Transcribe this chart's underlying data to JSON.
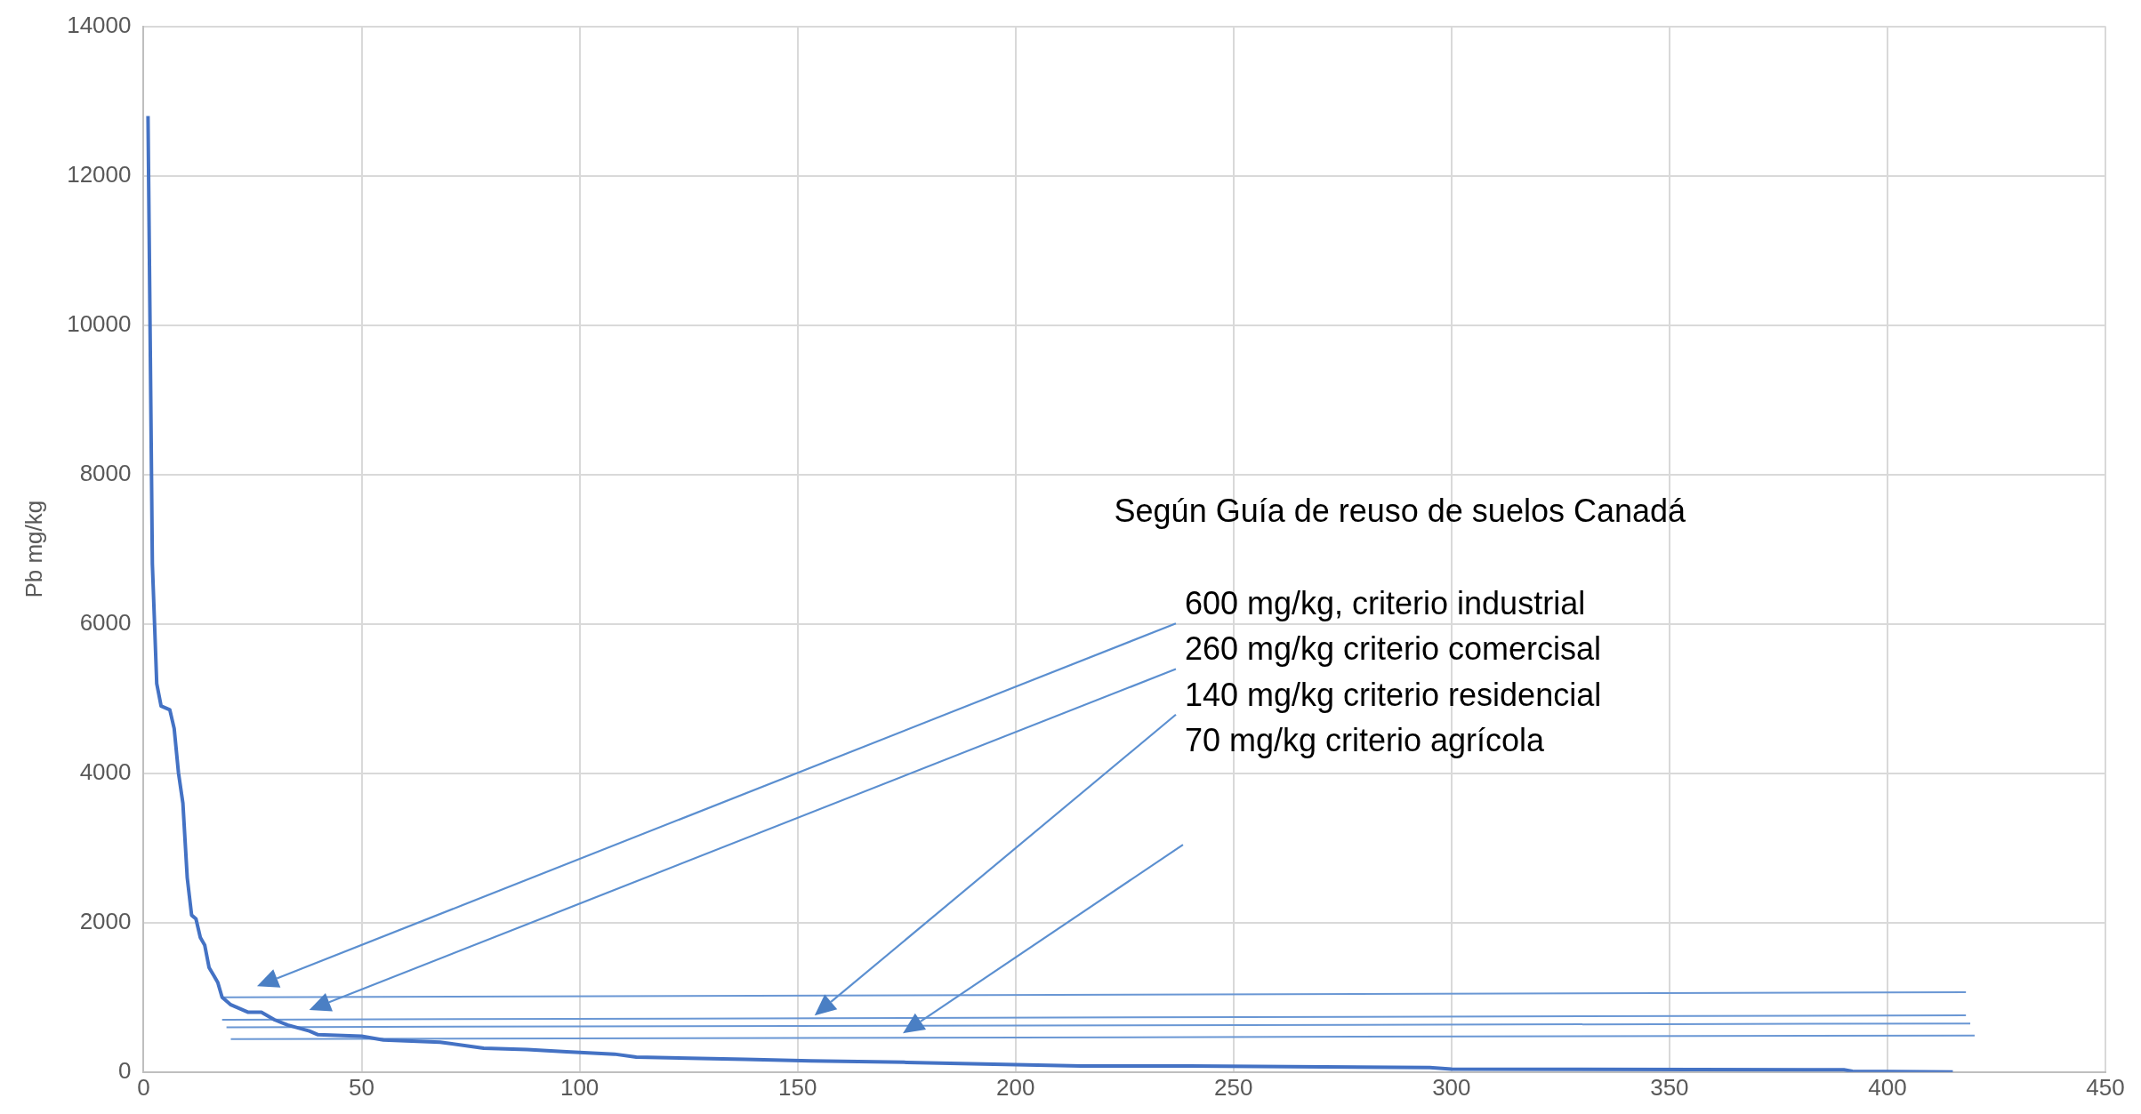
{
  "chart_data": {
    "type": "line",
    "ylabel": "Pb mg/kg",
    "xlim": [
      0,
      450
    ],
    "xticks": [
      0,
      50,
      100,
      150,
      200,
      250,
      300,
      350,
      400,
      450
    ],
    "ylim": [
      0,
      14000
    ],
    "yticks": [
      0,
      2000,
      4000,
      6000,
      8000,
      10000,
      12000,
      14000
    ],
    "grid": true,
    "legend": false,
    "marker": "none",
    "line_style": "solid",
    "series": [
      {
        "color": "#4472c4",
        "x": [
          1,
          2,
          3,
          4,
          6,
          7,
          8,
          9,
          10,
          11,
          12,
          13,
          14,
          15,
          16,
          17,
          18,
          20,
          24,
          27,
          30,
          33,
          38,
          40,
          50,
          55,
          68,
          78,
          88,
          97,
          108,
          113,
          138,
          153,
          175,
          190,
          215,
          240,
          295,
          300,
          390,
          392,
          415
        ],
        "values": [
          12800,
          6800,
          5200,
          4900,
          4850,
          4600,
          4000,
          3600,
          2600,
          2100,
          2050,
          1800,
          1700,
          1400,
          1300,
          1200,
          1000,
          900,
          800,
          800,
          700,
          630,
          550,
          500,
          480,
          430,
          400,
          320,
          300,
          270,
          240,
          200,
          170,
          150,
          130,
          110,
          80,
          80,
          60,
          40,
          30,
          10,
          0
        ]
      },
      {
        "color": "#6a97d4",
        "x": [
          18,
          418
        ],
        "values": [
          1000,
          1070
        ]
      },
      {
        "color": "#6a97d4",
        "x": [
          18,
          418
        ],
        "values": [
          700,
          760
        ]
      },
      {
        "color": "#6a97d4",
        "x": [
          19,
          419
        ],
        "values": [
          600,
          650
        ]
      },
      {
        "color": "#6a97d4",
        "x": [
          20,
          420
        ],
        "values": [
          440,
          490
        ]
      }
    ],
    "annotations": [
      "Según Guía de reuso de suelos Canadá",
      "600 mg/kg, criterio industrial",
      "260 mg/kg criterio comercisal",
      "140 mg/kg criterio residencial",
      "70 mg/kg criterio agrícola"
    ]
  }
}
